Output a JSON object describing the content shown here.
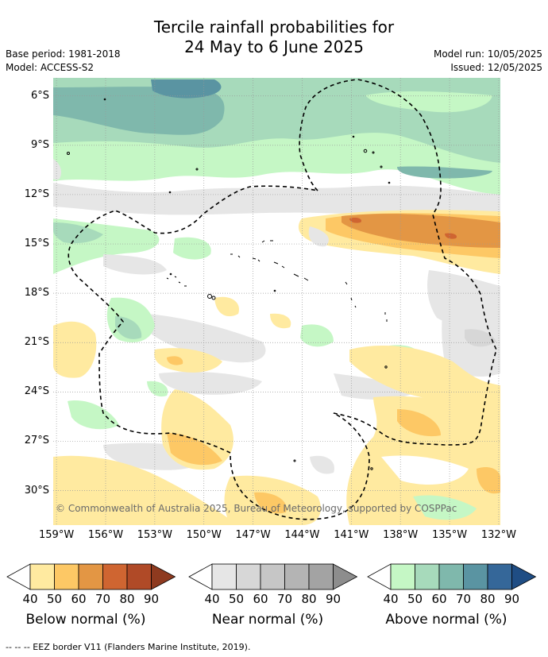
{
  "title": {
    "line1": "Tercile rainfall probabilities for",
    "line2": "24 May to 6 June 2025"
  },
  "meta": {
    "base_period": "Base period: 1981-2018",
    "model": "Model: ACCESS-S2",
    "model_run": "Model run: 10/05/2025",
    "issued": "Issued: 12/05/2025"
  },
  "map": {
    "lat_labels": [
      "6°S",
      "9°S",
      "12°S",
      "15°S",
      "18°S",
      "21°S",
      "24°S",
      "27°S",
      "30°S"
    ],
    "lat_values": [
      -6,
      -9,
      -12,
      -15,
      -18,
      -21,
      -24,
      -27,
      -30
    ],
    "lon_labels": [
      "159°W",
      "156°W",
      "153°W",
      "150°W",
      "147°W",
      "144°W",
      "141°W",
      "138°W",
      "135°W",
      "132°W"
    ],
    "lon_values": [
      -159,
      -156,
      -153,
      -150,
      -147,
      -144,
      -141,
      -138,
      -135,
      -132
    ],
    "credit": "© Commonwealth of Australia 2025, Bureau of Meteorology, supported by COSPPac"
  },
  "legends": [
    {
      "caption": "Below normal (%)",
      "ticks": [
        "40",
        "50",
        "60",
        "70",
        "80",
        "90"
      ],
      "colors": [
        "#ffffff",
        "#ffeaa0",
        "#fdc865",
        "#e39644",
        "#cf6531",
        "#b04a27",
        "#8e3a1f"
      ]
    },
    {
      "caption": "Near normal (%)",
      "ticks": [
        "40",
        "50",
        "60",
        "70",
        "80",
        "90"
      ],
      "colors": [
        "#ffffff",
        "#e6e6e6",
        "#d7d7d7",
        "#c6c6c6",
        "#b4b4b4",
        "#a3a3a3",
        "#8d8d8d"
      ]
    },
    {
      "caption": "Above normal (%)",
      "ticks": [
        "40",
        "50",
        "60",
        "70",
        "80",
        "90"
      ],
      "colors": [
        "#ffffff",
        "#c5f7c5",
        "#a7dabb",
        "#7fb8ac",
        "#5a94a2",
        "#356799",
        "#1f4d84"
      ]
    }
  ],
  "footnote": "--  --  -- EEZ border V11 (Flanders Marine Institute, 2019)."
}
